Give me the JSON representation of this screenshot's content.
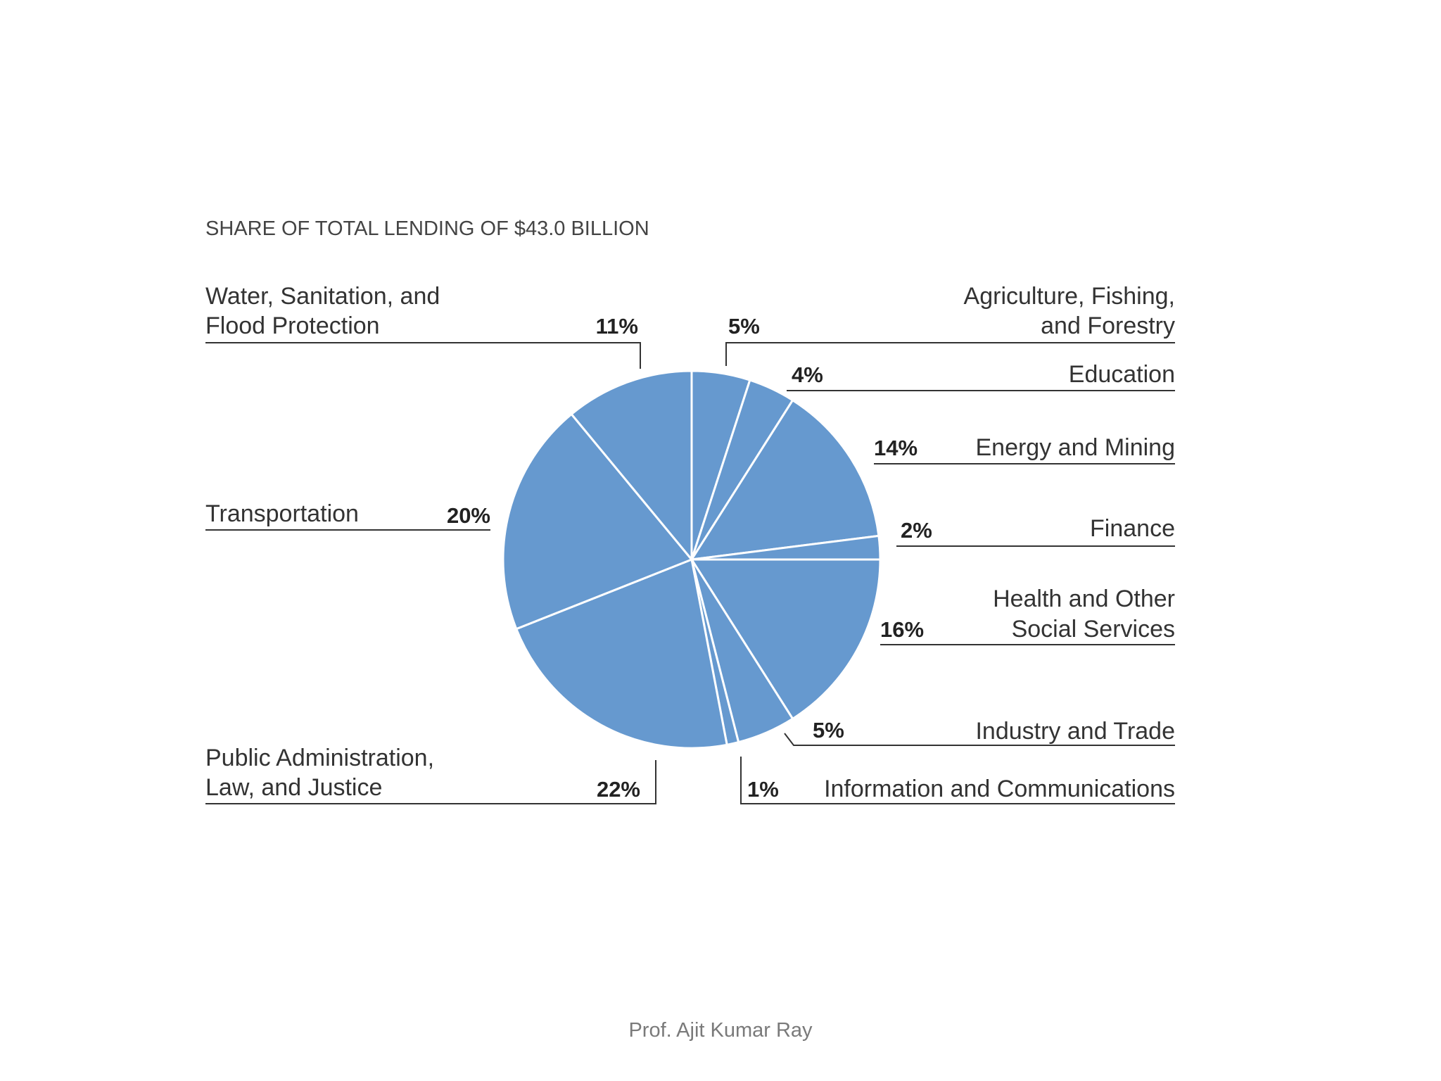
{
  "footer": "Prof. Ajit Kumar Ray",
  "colors": {
    "slice": "#6699cf",
    "slice_border": "#ffffff",
    "rule": "#333333"
  },
  "chart_data": {
    "type": "pie",
    "title": "SHARE OF TOTAL LENDING OF $43.0 BILLION",
    "unit": "%",
    "slices": [
      {
        "label": "Agriculture, Fishing, and Forestry",
        "lines": [
          "Agriculture, Fishing,",
          "and Forestry"
        ],
        "value": 5,
        "pct_label": "5%"
      },
      {
        "label": "Education",
        "lines": [
          "Education"
        ],
        "value": 4,
        "pct_label": "4%"
      },
      {
        "label": "Energy and Mining",
        "lines": [
          "Energy and Mining"
        ],
        "value": 14,
        "pct_label": "14%"
      },
      {
        "label": "Finance",
        "lines": [
          "Finance"
        ],
        "value": 2,
        "pct_label": "2%"
      },
      {
        "label": "Health and Other Social Services",
        "lines": [
          "Health and Other",
          "Social Services"
        ],
        "value": 16,
        "pct_label": "16%"
      },
      {
        "label": "Industry and Trade",
        "lines": [
          "Industry and Trade"
        ],
        "value": 5,
        "pct_label": "5%"
      },
      {
        "label": "Information and Communications",
        "lines": [
          "Information and Communications"
        ],
        "value": 1,
        "pct_label": "1%"
      },
      {
        "label": "Public Administration, Law, and Justice",
        "lines": [
          "Public Administration,",
          "Law, and Justice"
        ],
        "value": 22,
        "pct_label": "22%"
      },
      {
        "label": "Transportation",
        "lines": [
          "Transportation"
        ],
        "value": 20,
        "pct_label": "20%"
      },
      {
        "label": "Water, Sanitation, and Flood Protection",
        "lines": [
          "Water, Sanitation, and",
          "Flood Protection"
        ],
        "value": 11,
        "pct_label": "11%"
      }
    ]
  }
}
